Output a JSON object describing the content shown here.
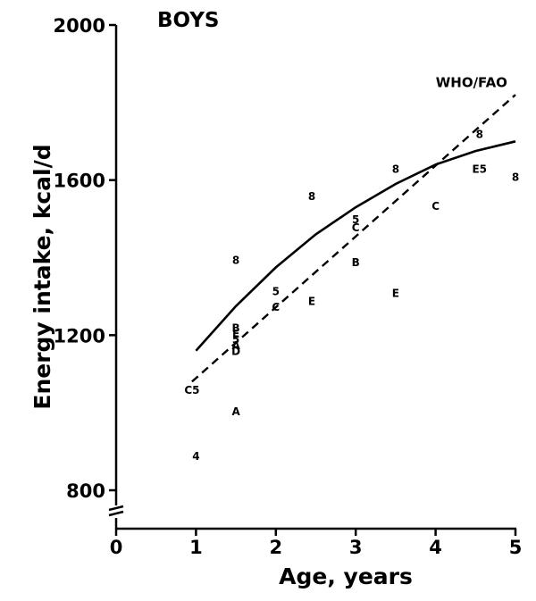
{
  "chart_data": {
    "type": "scatter",
    "title": "BOYS",
    "xlabel": "Age, years",
    "ylabel": "Energy intake, kcal/d",
    "xlim": [
      0,
      5
    ],
    "ylim": [
      760,
      2000
    ],
    "y_axis_break": true,
    "xticks": [
      0,
      1,
      2,
      3,
      4,
      5
    ],
    "yticks": [
      800,
      1200,
      1600,
      2000
    ],
    "grid": false,
    "points": [
      {
        "label": "C5",
        "x": 0.95,
        "y": 1060
      },
      {
        "label": "4",
        "x": 1.0,
        "y": 890
      },
      {
        "label": "8",
        "x": 1.5,
        "y": 1395
      },
      {
        "label": "B",
        "x": 1.5,
        "y": 1220
      },
      {
        "label": "E",
        "x": 1.5,
        "y": 1205
      },
      {
        "label": "5",
        "x": 1.5,
        "y": 1190
      },
      {
        "label": "A",
        "x": 1.5,
        "y": 1175
      },
      {
        "label": "D",
        "x": 1.5,
        "y": 1160
      },
      {
        "label": "A",
        "x": 1.5,
        "y": 1005
      },
      {
        "label": "5",
        "x": 2.0,
        "y": 1315
      },
      {
        "label": "C",
        "x": 2.0,
        "y": 1275
      },
      {
        "label": "8",
        "x": 2.45,
        "y": 1560
      },
      {
        "label": "E",
        "x": 2.45,
        "y": 1290
      },
      {
        "label": "5",
        "x": 3.0,
        "y": 1500
      },
      {
        "label": "C",
        "x": 3.0,
        "y": 1480
      },
      {
        "label": "B",
        "x": 3.0,
        "y": 1390
      },
      {
        "label": "8",
        "x": 3.5,
        "y": 1630
      },
      {
        "label": "E",
        "x": 3.5,
        "y": 1310
      },
      {
        "label": "C",
        "x": 4.0,
        "y": 1535
      },
      {
        "label": "8",
        "x": 4.55,
        "y": 1720
      },
      {
        "label": "E5",
        "x": 4.55,
        "y": 1630
      },
      {
        "label": "8",
        "x": 5.0,
        "y": 1610
      }
    ],
    "series": [
      {
        "style": "solid",
        "x": [
          1.0,
          1.5,
          2.0,
          2.5,
          3.0,
          3.5,
          4.0,
          4.5,
          5.0
        ],
        "y": [
          1160,
          1275,
          1375,
          1460,
          1530,
          1590,
          1640,
          1675,
          1700
        ]
      },
      {
        "style": "dashed",
        "x": [
          0.95,
          5.0
        ],
        "y": [
          1080,
          1820
        ]
      }
    ],
    "annotations": [
      {
        "text": "WHO/FAO",
        "x": 4.45,
        "y": 1840
      }
    ]
  }
}
